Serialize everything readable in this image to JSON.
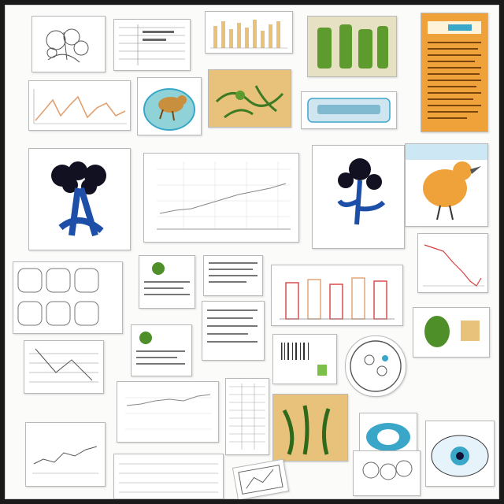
{
  "collage": {
    "tiles": [
      {
        "kind": "sketch-tree",
        "icon": "line-art-icon"
      },
      {
        "kind": "bar-chart",
        "icon": "bar-chart-icon"
      },
      {
        "kind": "plant-photo",
        "icon": "plant-icon"
      },
      {
        "kind": "text-page",
        "icon": "document-icon"
      },
      {
        "kind": "line-chart",
        "icon": "line-chart-icon"
      },
      {
        "kind": "animal-illustration",
        "icon": "animal-icon"
      },
      {
        "kind": "plant-drawing",
        "icon": "plant-icon"
      },
      {
        "kind": "device-photo",
        "icon": "device-icon"
      },
      {
        "kind": "tree-illustration",
        "icon": "tree-icon"
      },
      {
        "kind": "scatter-grid",
        "icon": "scatter-chart-icon"
      },
      {
        "kind": "tree-illustration",
        "icon": "tree-icon"
      },
      {
        "kind": "bird-illustration",
        "icon": "bird-icon"
      },
      {
        "kind": "line-chart",
        "icon": "line-chart-icon"
      },
      {
        "kind": "bar-chart",
        "icon": "bar-chart-icon"
      },
      {
        "kind": "plant-drawing",
        "icon": "plant-icon"
      },
      {
        "kind": "circle-diagram",
        "icon": "diagram-icon"
      },
      {
        "kind": "eye-illustration",
        "icon": "eye-icon"
      }
    ]
  },
  "colors": {
    "frame": "#1a1a1a",
    "paper": "#fbfbfa",
    "tree_blue": "#1e4fa8",
    "leaf_green": "#4f8f2a",
    "orange_page": "#f0a23a",
    "chart_orange": "#e0a070",
    "chart_red": "#d64040",
    "teal": "#3aa7c9"
  }
}
